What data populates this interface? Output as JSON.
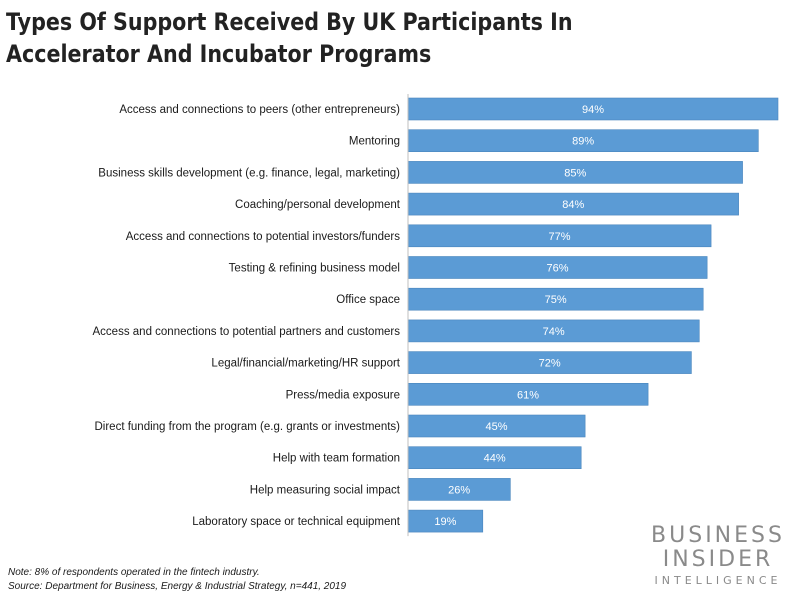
{
  "title_line1": "Types Of Support Received By UK Participants In",
  "title_line2": "Accelerator And Incubator Programs",
  "note": "Note: 8% of respondents operated in the fintech industry.",
  "source": "Source: Department for Business, Energy & Industrial Strategy, n=441, 2019",
  "logo": {
    "line1": "BUSINESS",
    "line2": "INSIDER",
    "line3": "INTELLIGENCE"
  },
  "colors": {
    "bar": "#5b9bd5",
    "bar_stroke": "#4a86bd",
    "label": "#ffffff"
  },
  "chart_data": {
    "type": "bar",
    "orientation": "horizontal",
    "title": "Types Of Support Received By UK Participants In Accelerator And Incubator Programs",
    "categories": [
      "Access and connections to peers (other entrepreneurs)",
      "Mentoring",
      "Business skills development (e.g. finance, legal, marketing)",
      "Coaching/personal development",
      "Access and connections to potential investors/funders",
      "Testing & refining business model",
      "Office space",
      "Access and connections to potential partners and customers",
      "Legal/financial/marketing/HR support",
      "Press/media exposure",
      "Direct funding from the program (e.g. grants or investments)",
      "Help with team formation",
      "Help measuring social impact",
      "Laboratory space or technical equipment"
    ],
    "values": [
      94,
      89,
      85,
      84,
      77,
      76,
      75,
      74,
      72,
      61,
      45,
      44,
      26,
      19
    ],
    "value_labels": [
      "94%",
      "89%",
      "85%",
      "84%",
      "77%",
      "76%",
      "75%",
      "74%",
      "72%",
      "61%",
      "45%",
      "44%",
      "26%",
      "19%"
    ],
    "xlim": [
      0,
      100
    ],
    "grid": false,
    "legend": "none"
  }
}
